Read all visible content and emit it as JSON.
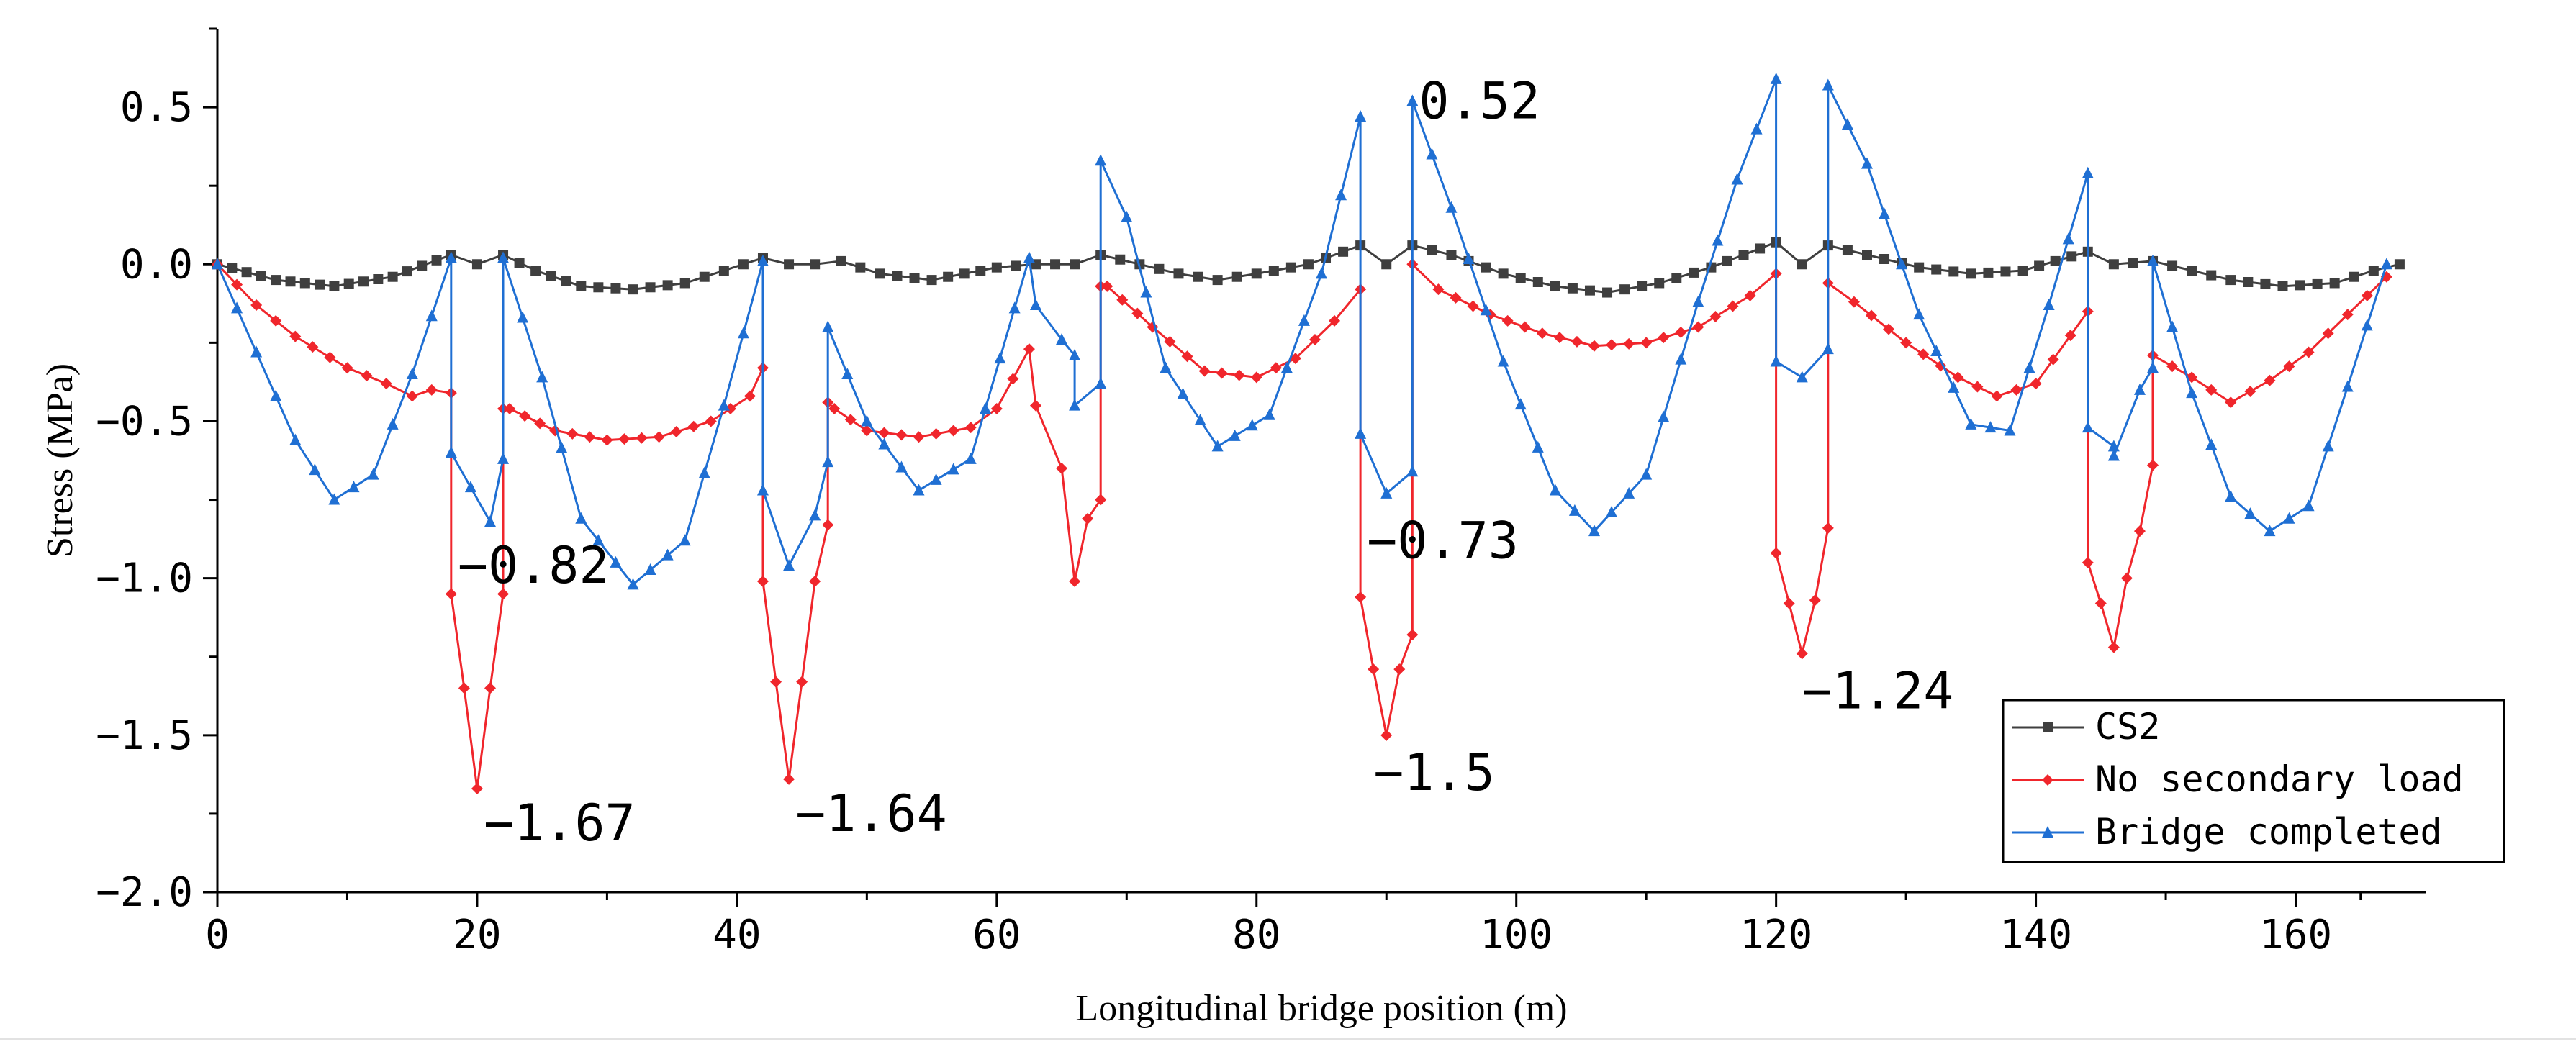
{
  "chart_data": {
    "type": "line",
    "title": "",
    "xlabel": "Longitudinal bridge position (m)",
    "ylabel": "Stress (MPa)",
    "xlim": [
      0,
      170
    ],
    "ylim": [
      -2.0,
      0.75
    ],
    "x_ticks": [
      0,
      20,
      40,
      60,
      80,
      100,
      120,
      140,
      160
    ],
    "x_tick_labels": [
      "0",
      "20",
      "40",
      "60",
      "80",
      "100",
      "120",
      "140",
      "160"
    ],
    "y_ticks": [
      0.5,
      0.0,
      -0.5,
      -1.0,
      -1.5,
      -2.0
    ],
    "y_tick_labels": [
      "0.5",
      "0.0",
      "−0.5",
      "−1.0",
      "−1.5",
      "−2.0"
    ],
    "legend_position": "bottom-right",
    "series": [
      {
        "name": "CS2",
        "color": "#3f3f3f",
        "marker": "square",
        "x": [
          0,
          4.5,
          9,
          13.5,
          18,
          20,
          22,
          24.5,
          28,
          32,
          36,
          39,
          42,
          44,
          46,
          48,
          51,
          55,
          60,
          63,
          66,
          68,
          71,
          74,
          77,
          80,
          84,
          88,
          90,
          92,
          95,
          99,
          103,
          107,
          111,
          115,
          120,
          122,
          124,
          127,
          131,
          135,
          139,
          144,
          146,
          149,
          152,
          155,
          159,
          163,
          166,
          168
        ],
        "y": [
          0.0,
          -0.05,
          -0.07,
          -0.04,
          0.03,
          0.0,
          0.03,
          -0.02,
          -0.07,
          -0.08,
          -0.06,
          -0.02,
          0.02,
          0.0,
          0.0,
          0.01,
          -0.03,
          -0.05,
          -0.01,
          0.0,
          0.0,
          0.03,
          0.0,
          -0.03,
          -0.05,
          -0.03,
          0.0,
          0.06,
          0.0,
          0.06,
          0.03,
          -0.03,
          -0.07,
          -0.09,
          -0.06,
          -0.01,
          0.07,
          0.0,
          0.06,
          0.03,
          -0.01,
          -0.03,
          -0.02,
          0.04,
          0.0,
          0.01,
          -0.02,
          -0.05,
          -0.07,
          -0.06,
          -0.02,
          0.0
        ]
      },
      {
        "name": "No secondary load",
        "color": "#f0262c",
        "marker": "diamond",
        "x": [
          0,
          3,
          6,
          10,
          13,
          15,
          16.5,
          18,
          18,
          19,
          20,
          21,
          22,
          22,
          22.5,
          26,
          30,
          34,
          38,
          41,
          42,
          42,
          43,
          44,
          45,
          46,
          47,
          47,
          47.5,
          50,
          54,
          58,
          60,
          62.5,
          63,
          65,
          66,
          67,
          68,
          68,
          68.5,
          72,
          76,
          80,
          83,
          86,
          88,
          88,
          89,
          90,
          91,
          92,
          92,
          94,
          98,
          102,
          106,
          110,
          114,
          118,
          120,
          120,
          121,
          122,
          123,
          124,
          124,
          126,
          130,
          134,
          137,
          140,
          144,
          144,
          145,
          146,
          147,
          148,
          149,
          149,
          152,
          155,
          158,
          161,
          164,
          167
        ],
        "y": [
          0.0,
          -0.13,
          -0.23,
          -0.33,
          -0.38,
          -0.42,
          -0.4,
          -0.41,
          -1.05,
          -1.35,
          -1.67,
          -1.35,
          -1.05,
          -0.46,
          -0.46,
          -0.53,
          -0.56,
          -0.55,
          -0.5,
          -0.42,
          -0.33,
          -1.01,
          -1.33,
          -1.64,
          -1.33,
          -1.01,
          -0.83,
          -0.44,
          -0.46,
          -0.53,
          -0.55,
          -0.52,
          -0.46,
          -0.27,
          -0.45,
          -0.65,
          -1.01,
          -0.81,
          -0.75,
          -0.07,
          -0.07,
          -0.2,
          -0.34,
          -0.36,
          -0.3,
          -0.18,
          -0.08,
          -1.06,
          -1.29,
          -1.5,
          -1.29,
          -1.18,
          0.0,
          -0.08,
          -0.16,
          -0.22,
          -0.26,
          -0.25,
          -0.2,
          -0.1,
          -0.03,
          -0.92,
          -1.08,
          -1.24,
          -1.07,
          -0.84,
          -0.06,
          -0.12,
          -0.25,
          -0.36,
          -0.42,
          -0.38,
          -0.15,
          -0.95,
          -1.08,
          -1.22,
          -1.0,
          -0.85,
          -0.64,
          -0.29,
          -0.36,
          -0.44,
          -0.37,
          -0.28,
          -0.16,
          -0.04
        ]
      },
      {
        "name": "Bridge completed",
        "color": "#1f6fd3",
        "marker": "triangle",
        "x": [
          0,
          3,
          6,
          9,
          12,
          15,
          18,
          18,
          21,
          22,
          22,
          25,
          28,
          32,
          36,
          39,
          42,
          42,
          44,
          46,
          47,
          47,
          50,
          54,
          58,
          62.5,
          63,
          65,
          66,
          66,
          68,
          68,
          70,
          73,
          77,
          81,
          85,
          88,
          88,
          90,
          92,
          92,
          95,
          99,
          103,
          106,
          110,
          114,
          117,
          120,
          120,
          122,
          124,
          124,
          127,
          131,
          135,
          138,
          141,
          144,
          144,
          146,
          146,
          148,
          149,
          149,
          152,
          155,
          158,
          161,
          164,
          167
        ],
        "y": [
          0.0,
          -0.28,
          -0.56,
          -0.75,
          -0.67,
          -0.35,
          0.02,
          -0.6,
          -0.82,
          -0.62,
          0.02,
          -0.36,
          -0.81,
          -1.02,
          -0.88,
          -0.45,
          0.01,
          -0.72,
          -0.96,
          -0.8,
          -0.63,
          -0.2,
          -0.5,
          -0.72,
          -0.62,
          0.02,
          -0.13,
          -0.24,
          -0.29,
          -0.45,
          -0.38,
          0.33,
          0.15,
          -0.33,
          -0.58,
          -0.48,
          -0.03,
          0.47,
          -0.54,
          -0.73,
          -0.66,
          0.52,
          0.18,
          -0.31,
          -0.72,
          -0.85,
          -0.67,
          -0.12,
          0.27,
          0.59,
          -0.31,
          -0.36,
          -0.27,
          0.57,
          0.32,
          -0.16,
          -0.51,
          -0.53,
          -0.13,
          0.29,
          -0.52,
          -0.58,
          -0.61,
          -0.4,
          -0.33,
          0.01,
          -0.41,
          -0.74,
          -0.85,
          -0.77,
          -0.39,
          0.0
        ]
      }
    ],
    "annotations": [
      {
        "text": "0.52",
        "x": 92.5,
        "y": 0.52
      },
      {
        "text": "−0.82",
        "x": 18.5,
        "y": -0.96
      },
      {
        "text": "−1.67",
        "x": 20.5,
        "y": -1.78
      },
      {
        "text": "−1.64",
        "x": 44.5,
        "y": -1.75
      },
      {
        "text": "−0.73",
        "x": 88.5,
        "y": -0.88
      },
      {
        "text": "−1.5",
        "x": 89,
        "y": -1.62
      },
      {
        "text": "−1.24",
        "x": 122,
        "y": -1.36
      }
    ]
  }
}
